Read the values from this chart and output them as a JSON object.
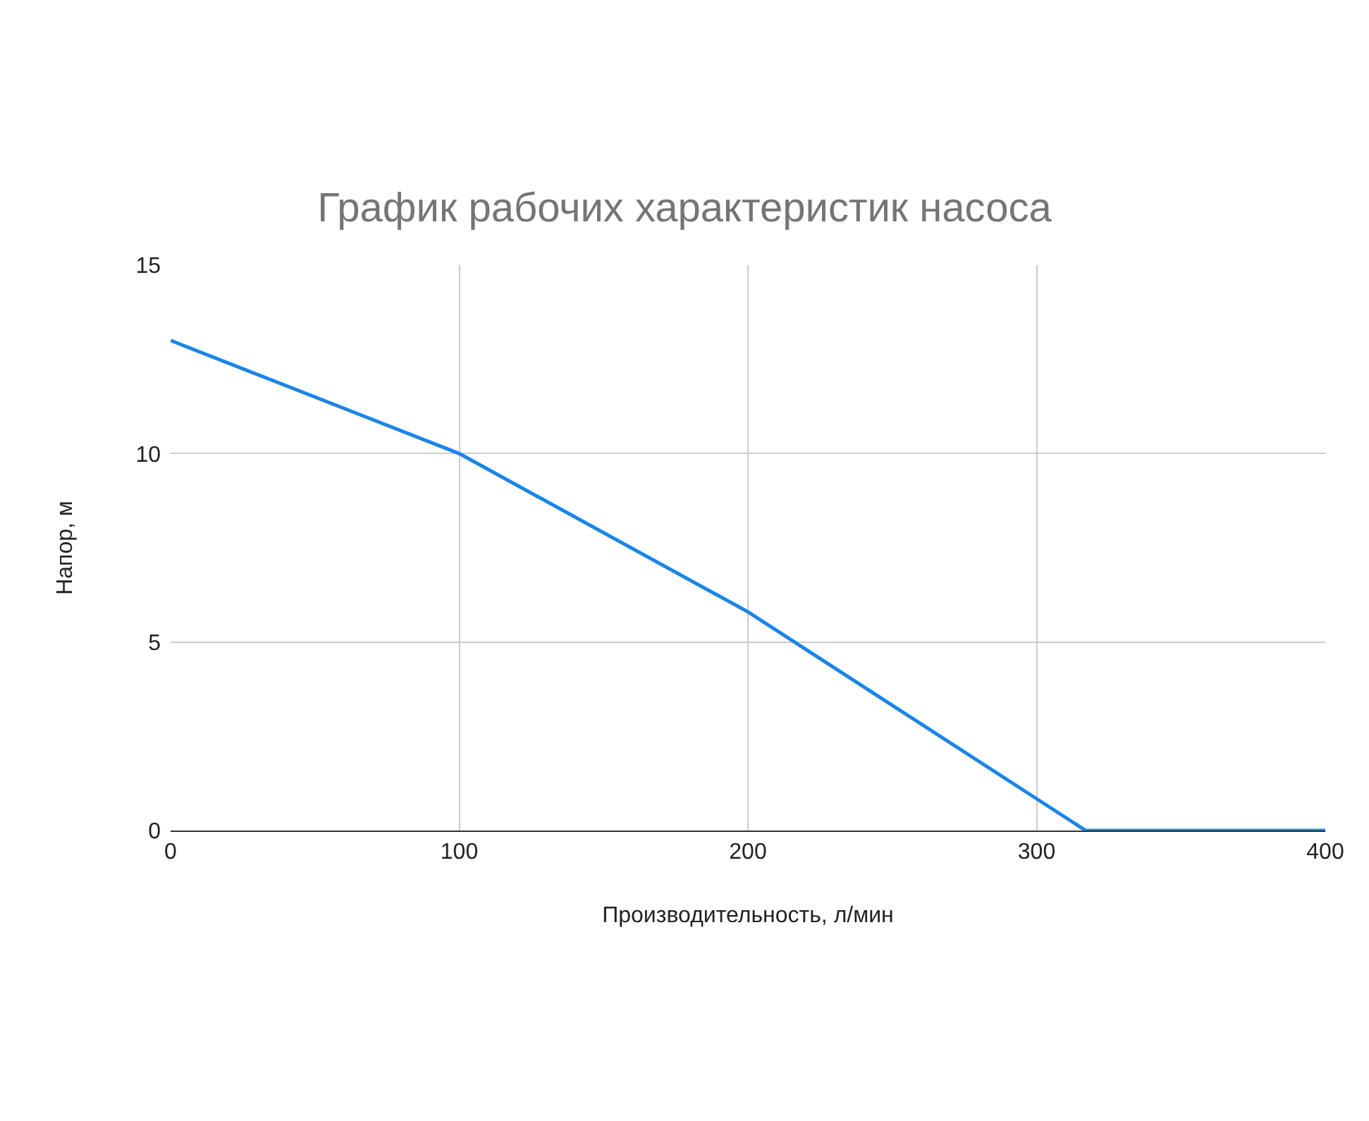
{
  "chart_data": {
    "type": "line",
    "title": "График рабочих характеристик насоса",
    "xlabel": "Производительность, л/мин",
    "ylabel": "Напор, м",
    "x": [
      0,
      100,
      200,
      317,
      400
    ],
    "series": [
      {
        "color": "#1a85e8",
        "values": [
          13,
          10,
          5.8,
          0,
          0
        ]
      }
    ],
    "xlim": [
      0,
      400
    ],
    "xticks": [
      0,
      100,
      200,
      300,
      400
    ],
    "ylim": [
      0,
      15
    ],
    "yticks": [
      0,
      5,
      10,
      15
    ],
    "grid": true,
    "legend": false,
    "marker": "none",
    "line_style": "solid"
  }
}
